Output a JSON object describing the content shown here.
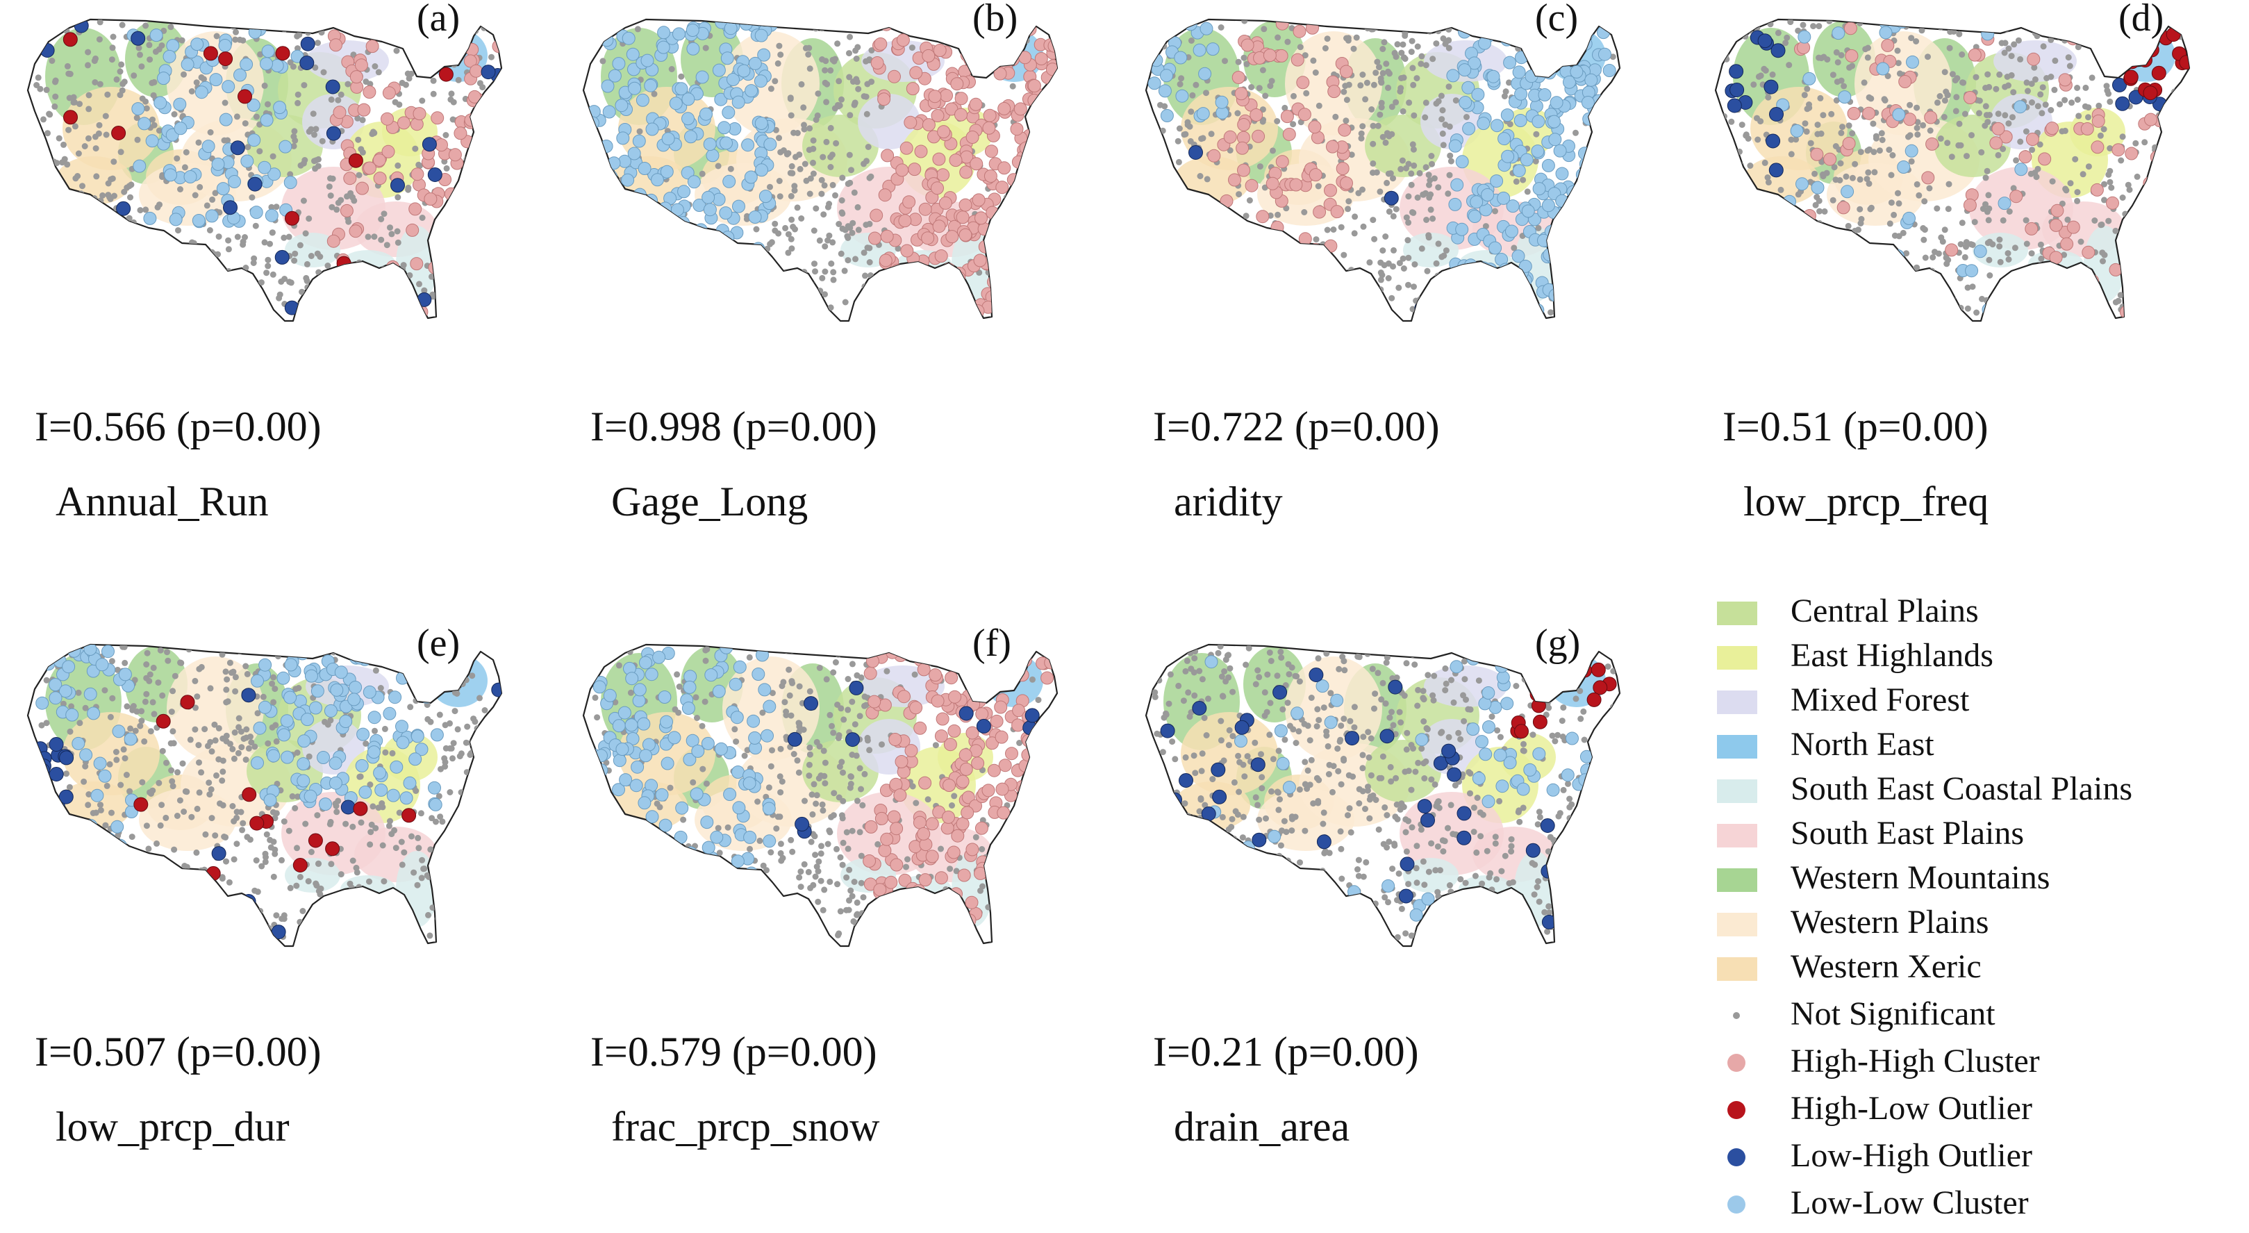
{
  "panels": [
    {
      "letter": "(a)",
      "stat": "I=0.566 (p=0.00)",
      "variable": "Annual_Run",
      "pattern": "annual"
    },
    {
      "letter": "(b)",
      "stat": "I=0.998 (p=0.00)",
      "variable": "Gage_Long",
      "pattern": "long"
    },
    {
      "letter": "(c)",
      "stat": "I=0.722 (p=0.00)",
      "variable": "aridity",
      "pattern": "aridity"
    },
    {
      "letter": "(d)",
      "stat": "I=0.51 (p=0.00)",
      "variable": "low_prcp_freq",
      "pattern": "freq"
    },
    {
      "letter": "(e)",
      "stat": "I=0.507 (p=0.00)",
      "variable": "low_prcp_dur",
      "pattern": "dur"
    },
    {
      "letter": "(f)",
      "stat": "I=0.579 (p=0.00)",
      "variable": "frac_prcp_snow",
      "pattern": "snow"
    },
    {
      "letter": "(g)",
      "stat": "I=0.21 (p=0.00)",
      "variable": "drain_area",
      "pattern": "drain"
    }
  ],
  "legend": {
    "regions": [
      {
        "label": "Central Plains",
        "color": "#c6e09a"
      },
      {
        "label": "East Highlands",
        "color": "#e9f09a"
      },
      {
        "label": "Mixed Forest",
        "color": "#dcdcf0"
      },
      {
        "label": "North East",
        "color": "#8ec9ec"
      },
      {
        "label": "South East Coastal Plains",
        "color": "#d8ecec"
      },
      {
        "label": "South East Plains",
        "color": "#f6d4d6"
      },
      {
        "label": "Western Mountains",
        "color": "#a7d593"
      },
      {
        "label": "Western Plains",
        "color": "#fbead2"
      },
      {
        "label": "Western Xeric",
        "color": "#f7dfb4"
      }
    ],
    "points": [
      {
        "label": "Not Significant",
        "color": "#999999",
        "icon": "small-dot"
      },
      {
        "label": "High-High Cluster",
        "color": "#e6a8a8",
        "icon": "dot"
      },
      {
        "label": "High-Low Outlier",
        "color": "#b8141c",
        "icon": "dot"
      },
      {
        "label": "Low-High Outlier",
        "color": "#2b4fa0",
        "icon": "dot"
      },
      {
        "label": "Low-Low Cluster",
        "color": "#9cc9ea",
        "icon": "dot"
      }
    ]
  }
}
